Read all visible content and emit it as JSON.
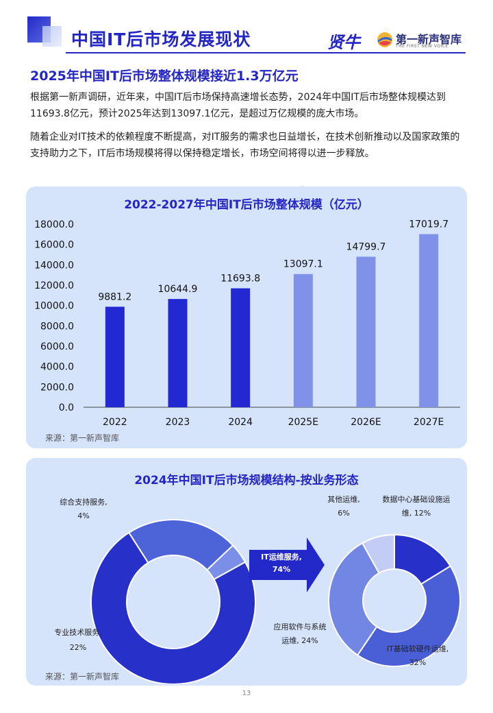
{
  "header": {
    "title": "中国IT后市场发展现状",
    "brand_mark": "贤牛",
    "brand_name": "第一新声智库",
    "brand_en": "THE FIRST NEW VOICE"
  },
  "section": {
    "heading": "2025年中国IT后市场整体规模接近1.3万亿元",
    "paragraph1": "根据第一新声调研，近年来，中国IT后市场保持高速增长态势，2024年中国IT后市场整体规模达到11693.8亿元，预计2025年达到13097.1亿元，是超过万亿规模的庞大市场。",
    "paragraph2": "随着企业对IT技术的依赖程度不断提高，对IT服务的需求也日益增长，在技术创新推动以及国家政策的支持助力之下，IT后市场规模将得以保持稳定增长，市场空间将得以进一步释放。"
  },
  "chart_data": [
    {
      "type": "bar",
      "title": "2022-2027年中国IT后市场整体规模（亿元）",
      "categories": [
        "2022",
        "2023",
        "2024",
        "2025E",
        "2026E",
        "2027E"
      ],
      "values": [
        9881.2,
        10644.9,
        11693.8,
        13097.1,
        14799.7,
        17019.7
      ],
      "value_labels": [
        "9881.2",
        "10644.9",
        "11693.8",
        "13097.1",
        "14799.7",
        "17019.7"
      ],
      "estimate": [
        false,
        false,
        false,
        true,
        true,
        true
      ],
      "ylim": [
        0,
        18000
      ],
      "yticks": [
        0,
        2000,
        4000,
        6000,
        8000,
        10000,
        12000,
        14000,
        16000,
        18000
      ],
      "ytick_labels": [
        "0.0",
        "2000.0",
        "4000.0",
        "6000.0",
        "8000.0",
        "10000.0",
        "12000.0",
        "14000.0",
        "16000.0",
        "18000.0"
      ],
      "colors": {
        "actual": "#2228d2",
        "estimate": "#8091ea"
      },
      "source": "来源：第一新声智库"
    },
    {
      "type": "pie",
      "title": "2024年中国IT后市场规模结构-按业务形态",
      "slices": [
        {
          "label": "IT运维服务",
          "value": 74,
          "label_text": "IT运维服务,",
          "pct_text": "74%",
          "color": "#2730c8"
        },
        {
          "label": "专业技术服务",
          "value": 22,
          "label_text": "专业技术服务,",
          "pct_text": "22%",
          "color": "#4d64d8"
        },
        {
          "label": "综合支持服务",
          "value": 4,
          "label_text": "综合支持服务,",
          "pct_text": "4%",
          "color": "#7c8fe8"
        }
      ],
      "breakdown_of": "IT运维服务",
      "sub_slices": [
        {
          "label": "数据中心基础设施运维",
          "value": 12,
          "label_text": "数据中心基础设施运",
          "label_text2": "维, 12%",
          "color": "#2730c8"
        },
        {
          "label": "IT基础软硬件运维",
          "value": 32,
          "label_text": "IT基础软硬件运维,",
          "label_text2": "32%",
          "color": "#4a5fd6"
        },
        {
          "label": "应用软件与系统运维",
          "value": 24,
          "label_text": "应用软件与系统",
          "label_text2": "运维, 24%",
          "color": "#7287e4"
        },
        {
          "label": "其他运维",
          "value": 6,
          "label_text": "其他运维,",
          "label_text2": "6%",
          "color": "#c3ccf4"
        }
      ],
      "source": "来源：第一新声智库"
    }
  ],
  "footer": {
    "page_number": "13"
  }
}
